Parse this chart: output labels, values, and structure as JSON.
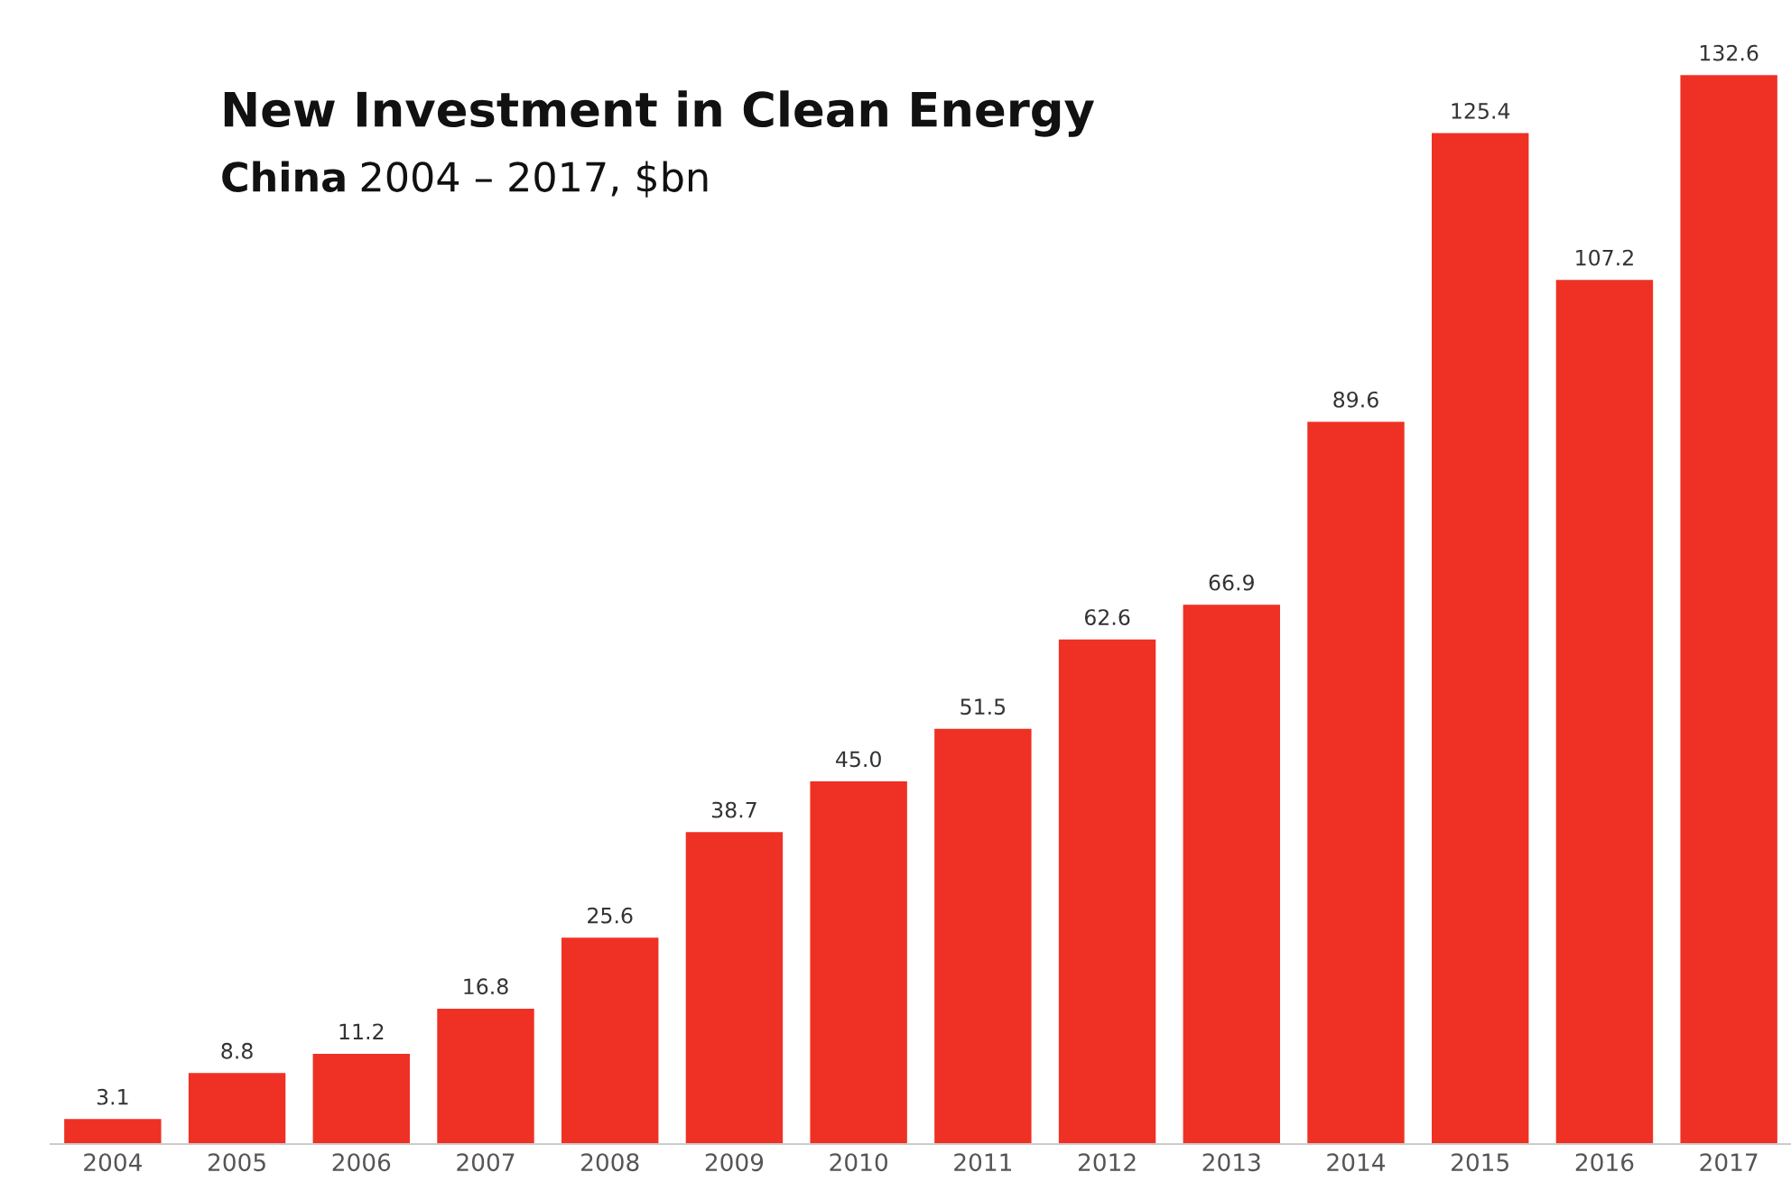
{
  "chart_data": {
    "type": "bar",
    "title": "New Investment in Clean Energy",
    "subtitle": "China 2004 – 2017, $bn",
    "categories": [
      "2004",
      "2005",
      "2006",
      "2007",
      "2008",
      "2009",
      "2010",
      "2011",
      "2012",
      "2013",
      "2014",
      "2015",
      "2016",
      "2017"
    ],
    "values": [
      3.1,
      8.8,
      11.2,
      16.8,
      25.6,
      38.7,
      45.0,
      51.5,
      62.6,
      66.9,
      89.6,
      125.4,
      107.2,
      132.6
    ],
    "value_labels": [
      "3.1",
      "8.8",
      "11.2",
      "16.8",
      "25.6",
      "38.7",
      "45.0",
      "51.5",
      "62.6",
      "66.9",
      "89.6",
      "125.4",
      "107.2",
      "132.6"
    ],
    "color": "#ee3124",
    "tick_labels": "x",
    "grid": false,
    "legend": false
  }
}
